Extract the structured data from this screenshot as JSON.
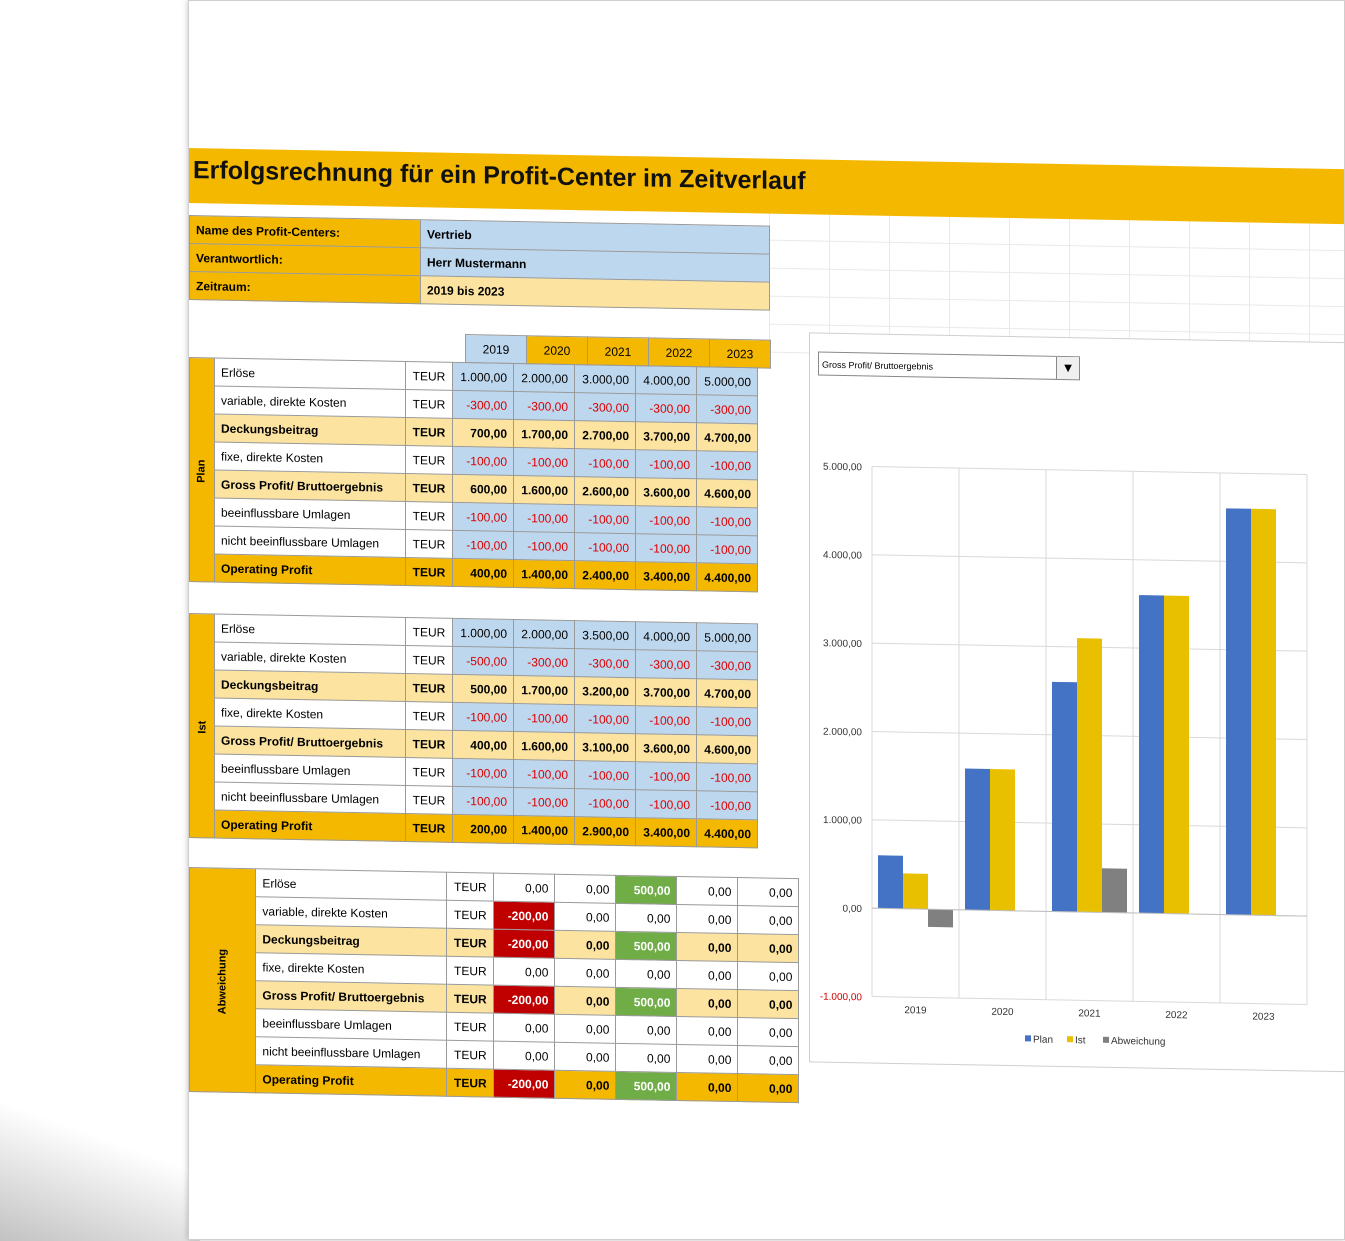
{
  "title": "Erfolgsrechnung für ein Profit-Center im Zeitverlauf",
  "info": [
    {
      "label": "Name des Profit-Centers:",
      "value": "Vertrieb"
    },
    {
      "label": "Verantwortlich:",
      "value": "Herr Mustermann"
    },
    {
      "label": "Zeitraum:",
      "value": "2019 bis 2023"
    }
  ],
  "years": [
    "2019",
    "2020",
    "2021",
    "2022",
    "2023"
  ],
  "unit": "TEUR",
  "row_labels": [
    "Erlöse",
    "variable, direkte Kosten",
    "Deckungsbeitrag",
    "fixe, direkte Kosten",
    "Gross Profit/ Bruttoergebnis",
    "beeinflussbare Umlagen",
    "nicht beeinflussbare Umlagen",
    "Operating Profit"
  ],
  "plan": {
    "label": "Plan",
    "rows": [
      [
        "1.000,00",
        "2.000,00",
        "3.000,00",
        "4.000,00",
        "5.000,00"
      ],
      [
        "-300,00",
        "-300,00",
        "-300,00",
        "-300,00",
        "-300,00"
      ],
      [
        "700,00",
        "1.700,00",
        "2.700,00",
        "3.700,00",
        "4.700,00"
      ],
      [
        "-100,00",
        "-100,00",
        "-100,00",
        "-100,00",
        "-100,00"
      ],
      [
        "600,00",
        "1.600,00",
        "2.600,00",
        "3.600,00",
        "4.600,00"
      ],
      [
        "-100,00",
        "-100,00",
        "-100,00",
        "-100,00",
        "-100,00"
      ],
      [
        "-100,00",
        "-100,00",
        "-100,00",
        "-100,00",
        "-100,00"
      ],
      [
        "400,00",
        "1.400,00",
        "2.400,00",
        "3.400,00",
        "4.400,00"
      ]
    ]
  },
  "ist": {
    "label": "Ist",
    "rows": [
      [
        "1.000,00",
        "2.000,00",
        "3.500,00",
        "4.000,00",
        "5.000,00"
      ],
      [
        "-500,00",
        "-300,00",
        "-300,00",
        "-300,00",
        "-300,00"
      ],
      [
        "500,00",
        "1.700,00",
        "3.200,00",
        "3.700,00",
        "4.700,00"
      ],
      [
        "-100,00",
        "-100,00",
        "-100,00",
        "-100,00",
        "-100,00"
      ],
      [
        "400,00",
        "1.600,00",
        "3.100,00",
        "3.600,00",
        "4.600,00"
      ],
      [
        "-100,00",
        "-100,00",
        "-100,00",
        "-100,00",
        "-100,00"
      ],
      [
        "-100,00",
        "-100,00",
        "-100,00",
        "-100,00",
        "-100,00"
      ],
      [
        "200,00",
        "1.400,00",
        "2.900,00",
        "3.400,00",
        "4.400,00"
      ]
    ]
  },
  "abweichung": {
    "label": "Abweichung",
    "rows": [
      [
        "0,00",
        "0,00",
        "500,00",
        "0,00",
        "0,00"
      ],
      [
        "-200,00",
        "0,00",
        "0,00",
        "0,00",
        "0,00"
      ],
      [
        "-200,00",
        "0,00",
        "500,00",
        "0,00",
        "0,00"
      ],
      [
        "0,00",
        "0,00",
        "0,00",
        "0,00",
        "0,00"
      ],
      [
        "-200,00",
        "0,00",
        "500,00",
        "0,00",
        "0,00"
      ],
      [
        "0,00",
        "0,00",
        "0,00",
        "0,00",
        "0,00"
      ],
      [
        "0,00",
        "0,00",
        "0,00",
        "0,00",
        "0,00"
      ],
      [
        "-200,00",
        "0,00",
        "500,00",
        "0,00",
        "0,00"
      ]
    ]
  },
  "chart_selector": "Gross Profit/ Bruttoergebnis",
  "chart_data": {
    "type": "bar",
    "categories": [
      "2019",
      "2020",
      "2021",
      "2022",
      "2023"
    ],
    "series": [
      {
        "name": "Plan",
        "values": [
          600,
          1600,
          2600,
          3600,
          4600
        ],
        "color": "#4472C4"
      },
      {
        "name": "Ist",
        "values": [
          400,
          1600,
          3100,
          3600,
          4600
        ],
        "color": "#E8C000"
      },
      {
        "name": "Abweichung",
        "values": [
          -200,
          0,
          500,
          0,
          0
        ],
        "color": "#808080"
      }
    ],
    "ylim": [
      -1000,
      5000
    ],
    "yticks": [
      "-1.000,00",
      "0,00",
      "1.000,00",
      "2.000,00",
      "3.000,00",
      "4.000,00",
      "5.000,00"
    ],
    "negative_tick_color": "#d00000",
    "grid": true,
    "legend": "bottom"
  },
  "colors": {
    "accent": "#F5B800",
    "input_blue": "#BDD7EE",
    "subtotal": "#FCE4A0",
    "negative": "#C00000",
    "positive": "#70AD47"
  }
}
